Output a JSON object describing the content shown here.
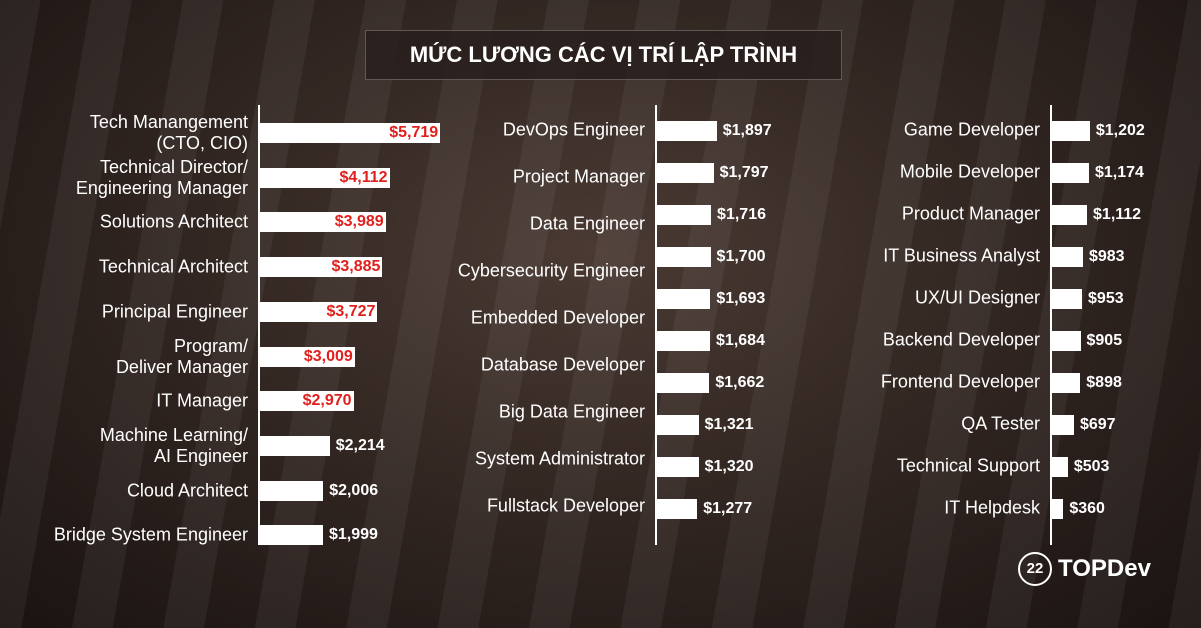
{
  "title": "MỨC LƯƠNG CÁC VỊ TRÍ LẬP TRÌNH",
  "logo_badge": "22",
  "logo": "TOPDev",
  "chart_data": [
    {
      "type": "bar",
      "categories": [
        "Tech Manangement\n(CTO, CIO)",
        "Technical Director/\nEngineering Manager",
        "Solutions Architect",
        "Technical Architect",
        "Principal Engineer",
        "Program/\nDeliver Manager",
        "IT Manager",
        "Machine Learning/\nAI Engineer",
        "Cloud Architect",
        "Bridge System Engineer"
      ],
      "values": [
        5719,
        4112,
        3989,
        3885,
        3727,
        3009,
        2970,
        2214,
        2006,
        1999
      ],
      "value_labels": [
        "$5,719",
        "$4,112",
        "$3,989",
        "$3,885",
        "$3,727",
        "$3,009",
        "$2,970",
        "$2,214",
        "$2,006",
        "$1,999"
      ],
      "color": "#ffffff",
      "label_colors": [
        "#e0201c",
        "#e0201c",
        "#e0201c",
        "#e0201c",
        "#e0201c",
        "#e0201c",
        "#e0201c",
        "#ffffff",
        "#ffffff",
        "#ffffff"
      ]
    },
    {
      "type": "bar",
      "categories": [
        "DevOps Engineer",
        "Project Manager",
        "Data Engineer",
        "Cybersecurity Engineer",
        "Embedded Developer",
        "Database Developer",
        null,
        "Big Data Engineer",
        "System Administrator",
        "Fullstack Developer"
      ],
      "values": [
        1897,
        1797,
        1716,
        1700,
        1693,
        1684,
        1662,
        1321,
        1320,
        1277
      ],
      "value_labels": [
        "$1,897",
        "$1,797",
        "$1,716",
        "$1,700",
        "$1,693",
        "$1,684",
        "$1,662",
        "$1,321",
        "$1,320",
        "$1,277"
      ],
      "color": "#ffffff"
    },
    {
      "type": "bar",
      "categories": [
        "Game Developer",
        "Mobile Developer",
        "Product Manager",
        "IT Business Analyst",
        "UX/UI Designer",
        "Backend Developer",
        "Frontend Developer",
        "QA Tester",
        "Technical Support",
        "IT Helpdesk"
      ],
      "values": [
        1202,
        1174,
        1112,
        983,
        953,
        905,
        898,
        697,
        503,
        360
      ],
      "value_labels": [
        "$1,202",
        "$1,174",
        "$1,112",
        "$983",
        "$953",
        "$905",
        "$898",
        "$697",
        "$503",
        "$360"
      ],
      "color": "#ffffff"
    }
  ]
}
